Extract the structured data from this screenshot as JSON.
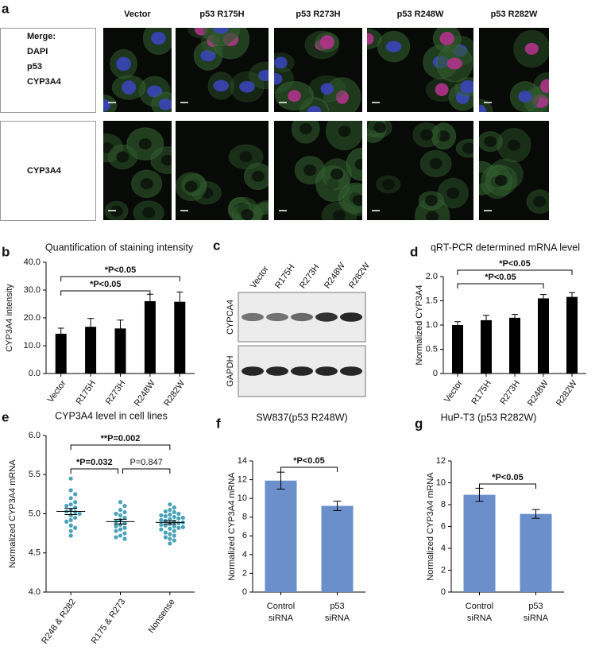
{
  "micrograph": {
    "panel": "a",
    "columns": [
      "Vector",
      "p53 R175H",
      "p53 R273H",
      "p53 R248W",
      "p53 R282W"
    ],
    "merge_legend": [
      {
        "text": "Merge:",
        "color": "#000000"
      },
      {
        "text": "DAPI",
        "color": "#3b4bc8"
      },
      {
        "text": "p53",
        "color": "#d0202a"
      },
      {
        "text": "CYP3A4",
        "color": "#3a6b2a"
      }
    ],
    "row2_label": {
      "text": "CYP3A4",
      "color": "#3a6b2a"
    }
  },
  "blot": {
    "panel": "c",
    "lanes": [
      "Vector",
      "R175H",
      "R273H",
      "R248W",
      "R282W"
    ],
    "rows": [
      "CYPCA4",
      "GAPDH"
    ]
  },
  "chart_data": [
    {
      "type": "bar",
      "panel": "b",
      "title": "Quantification of staining intensity",
      "ylabel": "CYP3A4 intensity",
      "categories": [
        "Vector",
        "R175H",
        "R273H",
        "R248W",
        "R282W"
      ],
      "values": [
        14.3,
        16.8,
        16.2,
        26.0,
        25.8
      ],
      "errors": [
        2.0,
        3.0,
        3.0,
        2.5,
        3.5
      ],
      "color": "#000000",
      "ylim": [
        0,
        40
      ],
      "yticks": [
        {
          "value": 0,
          "label": "0.0"
        },
        {
          "value": 10,
          "label": "10.0"
        },
        {
          "value": 20,
          "label": "20.0"
        },
        {
          "value": 30,
          "label": "30.0"
        },
        {
          "value": 40,
          "label": "40.0"
        }
      ],
      "annotations": [
        "*P<0.05",
        "*P<0.05"
      ]
    },
    {
      "type": "bar",
      "panel": "d",
      "title": "qRT-PCR determined mRNA level",
      "ylabel": "Normalized CYP3A4",
      "categories": [
        "Vector",
        "R175H",
        "R273H",
        "R248W",
        "R282W"
      ],
      "values": [
        1.0,
        1.1,
        1.15,
        1.55,
        1.58
      ],
      "errors": [
        0.07,
        0.1,
        0.07,
        0.08,
        0.09
      ],
      "color": "#000000",
      "ylim": [
        0,
        2.0
      ],
      "yticks": [
        0,
        0.5,
        {
          "value": 1.0,
          "label": "1.0"
        },
        1.5,
        {
          "value": 2.0,
          "label": "2.0"
        }
      ],
      "annotations": [
        "*P<0.05",
        "*P<0.05"
      ]
    },
    {
      "type": "dot",
      "panel": "e",
      "title": "CYP3A4 level in cell lines",
      "ylabel": "Normalized CYP3A4 mRNA",
      "categories": [
        "R248 & R282",
        "R175 & R273",
        "Nonsense"
      ],
      "color": "#4aa3b8",
      "points": [
        [
          5.45,
          5.3,
          5.25,
          5.2,
          5.15,
          5.12,
          5.1,
          5.08,
          5.05,
          5.03,
          5.02,
          5.0,
          4.98,
          4.95,
          4.92,
          4.9,
          4.85,
          4.82,
          4.78,
          4.72
        ],
        [
          5.15,
          5.1,
          5.05,
          5.02,
          5.0,
          4.98,
          4.95,
          4.92,
          4.9,
          4.88,
          4.86,
          4.84,
          4.82,
          4.8,
          4.78,
          4.75,
          4.72,
          4.7,
          4.68
        ],
        [
          5.12,
          5.08,
          5.05,
          5.03,
          5.02,
          5.0,
          4.99,
          4.98,
          4.97,
          4.96,
          4.95,
          4.94,
          4.93,
          4.92,
          4.91,
          4.9,
          4.89,
          4.88,
          4.87,
          4.86,
          4.85,
          4.84,
          4.83,
          4.82,
          4.81,
          4.8,
          4.78,
          4.76,
          4.74,
          4.72,
          4.7,
          4.68,
          4.66,
          4.62
        ]
      ],
      "means": [
        5.03,
        4.9,
        4.89
      ],
      "errors": [
        0.04,
        0.03,
        0.02
      ],
      "ylim": [
        4.0,
        6.0
      ],
      "yticks": [
        {
          "value": 4.0,
          "label": "4.0"
        },
        4.5,
        {
          "value": 5.0,
          "label": "5.0"
        },
        5.5,
        {
          "value": 6.0,
          "label": "6.0"
        }
      ],
      "annotations": [
        "**P=0.002",
        "*P=0.032",
        "P=0.847"
      ]
    },
    {
      "type": "bar",
      "panel": "f",
      "title": "SW837(p53 R248W)",
      "ylabel": "Normalized CYP3A4 mRNA",
      "categories": [
        "Control siRNA",
        "p53 siRNA"
      ],
      "values": [
        11.9,
        9.2
      ],
      "errors": [
        0.9,
        0.5
      ],
      "color": "#6a8fca",
      "ylim": [
        0,
        14
      ],
      "yticks": [
        0,
        2,
        4,
        6,
        8,
        10,
        12,
        14
      ],
      "annotations": [
        "*P<0.05"
      ]
    },
    {
      "type": "bar",
      "panel": "g",
      "title": "HuP-T3 (p53 R282W)",
      "ylabel": "Normalized CYP3A4 mRNA",
      "categories": [
        "Control siRNA",
        "p53 siRNA"
      ],
      "values": [
        8.9,
        7.15
      ],
      "errors": [
        0.6,
        0.4
      ],
      "color": "#6a8fca",
      "ylim": [
        0,
        12
      ],
      "yticks": [
        0,
        2,
        4,
        6,
        8,
        10,
        12
      ],
      "annotations": [
        "*P<0.05"
      ]
    }
  ]
}
